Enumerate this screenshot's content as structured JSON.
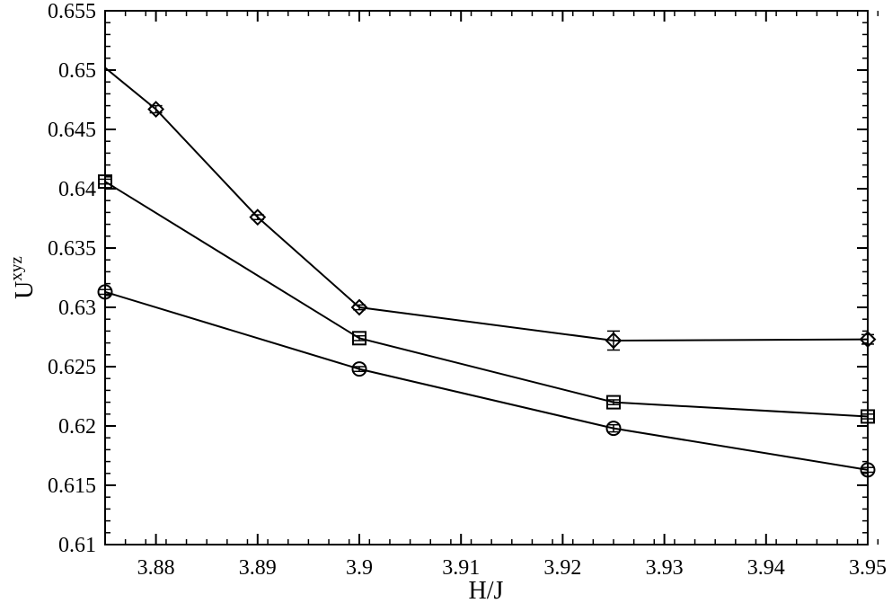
{
  "chart_data": {
    "type": "line",
    "xlabel": "H/J",
    "ylabel": {
      "base": "U",
      "superscript": "xyz"
    },
    "xlim": [
      3.875,
      3.95
    ],
    "ylim": [
      0.61,
      0.655
    ],
    "x_ticks": [
      "3.88",
      "3.89",
      "3.9",
      "3.91",
      "3.92",
      "3.93",
      "3.94",
      "3.95"
    ],
    "x_tick_values": [
      3.88,
      3.89,
      3.9,
      3.91,
      3.92,
      3.93,
      3.94,
      3.95
    ],
    "y_ticks": [
      "0.61",
      "0.615",
      "0.62",
      "0.625",
      "0.63",
      "0.635",
      "0.64",
      "0.645",
      "0.65",
      "0.655"
    ],
    "y_tick_values": [
      0.61,
      0.615,
      0.62,
      0.625,
      0.63,
      0.635,
      0.64,
      0.645,
      0.65,
      0.655
    ],
    "grid": false,
    "legend": "none",
    "series": [
      {
        "marker": "diamond",
        "x": [
          3.875,
          3.88,
          3.89,
          3.9,
          3.925,
          3.95
        ],
        "y": [
          0.6502,
          0.6467,
          0.6376,
          0.63,
          0.6272,
          0.6273
        ],
        "markers_on": [
          false,
          true,
          true,
          true,
          true,
          true
        ],
        "yerr": [
          0,
          0.0003,
          0.0002,
          0.0002,
          0.0008,
          0.0004
        ]
      },
      {
        "marker": "square",
        "x": [
          3.875,
          3.9,
          3.925,
          3.95
        ],
        "y": [
          0.6406,
          0.6274,
          0.622,
          0.6208
        ],
        "markers_on": [
          true,
          true,
          true,
          true
        ],
        "yerr": [
          0.0002,
          0.0002,
          0.0002,
          0.0002
        ]
      },
      {
        "marker": "circle",
        "x": [
          3.875,
          3.9,
          3.925,
          3.95
        ],
        "y": [
          0.6313,
          0.6248,
          0.6198,
          0.6163
        ],
        "markers_on": [
          true,
          true,
          true,
          true
        ],
        "yerr": [
          0.0002,
          0.0002,
          0.0003,
          0.0002
        ]
      }
    ],
    "colors": {
      "line": "#000000",
      "background": "#ffffff"
    }
  }
}
